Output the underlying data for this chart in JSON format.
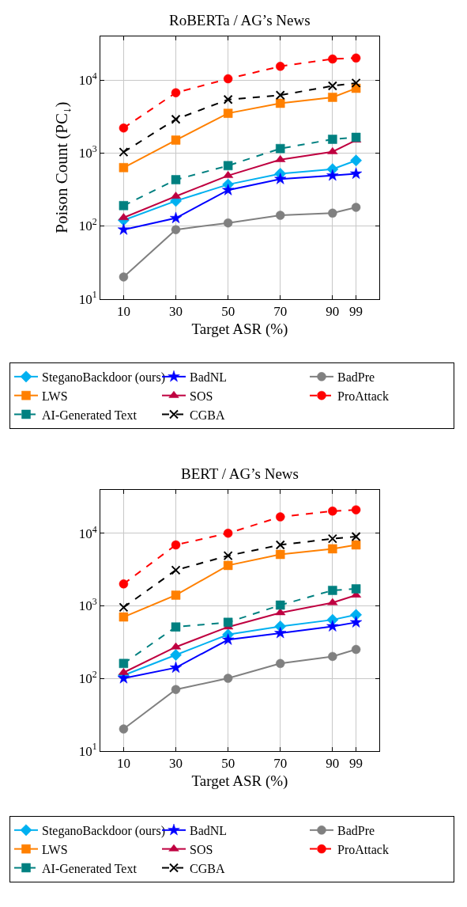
{
  "chart_data": [
    {
      "type": "line",
      "title": "RoBERTa / AG’s News",
      "xlabel": "Target ASR (%)",
      "ylabel": "Poison Count (PC$_{↓}$)",
      "x": [
        10,
        30,
        50,
        70,
        90,
        99
      ],
      "xlim": [
        1.1,
        107.9
      ],
      "xticks": [
        10,
        30,
        50,
        70,
        90,
        99
      ],
      "ylim": [
        10,
        40000
      ],
      "yticks": [
        {
          "value": 10,
          "label": "10$^{1}$"
        },
        {
          "value": 100,
          "label": "10$^{2}$"
        },
        {
          "value": 1000,
          "label": "10$^{3}$"
        },
        {
          "value": 10000,
          "label": "10$^{4}$"
        }
      ],
      "log": "y",
      "grid": true,
      "legend": "bottom",
      "series": [
        {
          "name": "SteganoBackdoor (ours)",
          "color": "#00b0f0",
          "marker": "diamond",
          "line_style": "solid",
          "values": [
            120,
            220,
            370,
            520,
            600,
            790
          ]
        },
        {
          "name": "BadNL",
          "color": "#0000ff",
          "marker": "star",
          "line_style": "solid",
          "values": [
            89,
            128,
            310,
            440,
            490,
            520
          ]
        },
        {
          "name": "BadPre",
          "color": "#808080",
          "marker": "circle",
          "line_style": "solid",
          "values": [
            20,
            89,
            110,
            140,
            150,
            180
          ]
        },
        {
          "name": "LWS",
          "color": "#ff8000",
          "marker": "square",
          "line_style": "solid",
          "values": [
            630,
            1500,
            3500,
            4800,
            5800,
            7700
          ]
        },
        {
          "name": "SOS",
          "color": "#bf0040",
          "marker": "triangle",
          "line_style": "solid",
          "values": [
            130,
            255,
            490,
            810,
            1040,
            1500
          ]
        },
        {
          "name": "ProAttack",
          "color": "#ff0000",
          "marker": "circle",
          "line_style": "dashed",
          "values": [
            2200,
            6700,
            10400,
            15400,
            19400,
            20000
          ]
        },
        {
          "name": "AI-Generated Text",
          "color": "#008080",
          "marker": "square",
          "line_style": "dashed",
          "values": [
            190,
            430,
            670,
            1150,
            1540,
            1640
          ]
        },
        {
          "name": "CGBA",
          "color": "#000000",
          "marker": "cross",
          "line_style": "dashed",
          "values": [
            1030,
            2900,
            5400,
            6200,
            8300,
            9100
          ]
        }
      ]
    },
    {
      "type": "line",
      "title": "BERT / AG’s News",
      "xlabel": "Target ASR (%)",
      "x": [
        10,
        30,
        50,
        70,
        90,
        99
      ],
      "xlim": [
        1.1,
        107.9
      ],
      "xticks": [
        10,
        30,
        50,
        70,
        90,
        99
      ],
      "ylim": [
        10,
        40000
      ],
      "yticks": [
        {
          "value": 10,
          "label": "10$^{1}$"
        },
        {
          "value": 100,
          "label": "10$^{2}$"
        },
        {
          "value": 1000,
          "label": "10$^{3}$"
        },
        {
          "value": 10000,
          "label": "10$^{4}$"
        }
      ],
      "log": "y",
      "grid": true,
      "legend": "bottom",
      "series": [
        {
          "name": "SteganoBackdoor (ours)",
          "color": "#00b0f0",
          "marker": "diamond",
          "line_style": "solid",
          "values": [
            110,
            210,
            400,
            520,
            640,
            750
          ]
        },
        {
          "name": "BadNL",
          "color": "#0000ff",
          "marker": "star",
          "line_style": "solid",
          "values": [
            100,
            140,
            340,
            420,
            520,
            590
          ]
        },
        {
          "name": "BadPre",
          "color": "#808080",
          "marker": "circle",
          "line_style": "solid",
          "values": [
            20,
            70,
            100,
            160,
            200,
            250
          ]
        },
        {
          "name": "LWS",
          "color": "#ff8000",
          "marker": "square",
          "line_style": "solid",
          "values": [
            700,
            1400,
            3600,
            5100,
            6100,
            6900
          ]
        },
        {
          "name": "SOS",
          "color": "#bf0040",
          "marker": "triangle",
          "line_style": "solid",
          "values": [
            120,
            270,
            510,
            800,
            1100,
            1400
          ]
        },
        {
          "name": "ProAttack",
          "color": "#ff0000",
          "marker": "circle",
          "line_style": "dashed",
          "values": [
            2000,
            6900,
            10000,
            16800,
            20200,
            21000
          ]
        },
        {
          "name": "AI-Generated Text",
          "color": "#008080",
          "marker": "square",
          "line_style": "dashed",
          "values": [
            160,
            510,
            590,
            1020,
            1630,
            1710
          ]
        },
        {
          "name": "CGBA",
          "color": "#000000",
          "marker": "cross",
          "line_style": "dashed",
          "values": [
            950,
            3100,
            4900,
            6900,
            8400,
            9000
          ]
        }
      ]
    }
  ]
}
